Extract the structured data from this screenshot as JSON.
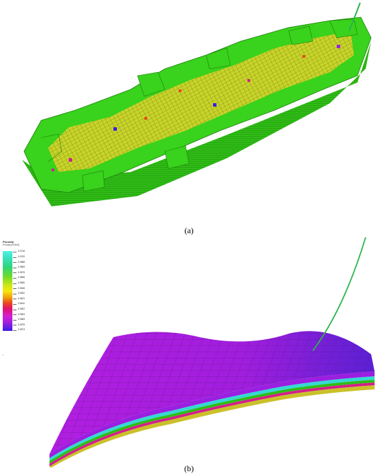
{
  "captions": {
    "a": "(a)",
    "b": "(b)"
  },
  "legend": {
    "title": "Porosity",
    "subtitle": "Porosity [m3/m3]",
    "ticks": [
      "0.0716",
      "0.0700",
      "0.0688",
      "0.0683",
      "0.0679",
      "0.0668",
      "0.0650",
      "0.0646",
      "0.0632",
      "0.0621",
      "0.0610",
      "0.0602",
      "0.0594",
      "0.0583",
      "0.0575",
      "0.0573"
    ]
  },
  "colors": {
    "grid_green": "#39d21c",
    "grid_yellow": "#d8d42a",
    "surface_purple": "#b21ee0",
    "surface_violet": "#6e22d8",
    "well_green": "#2bb54a"
  }
}
